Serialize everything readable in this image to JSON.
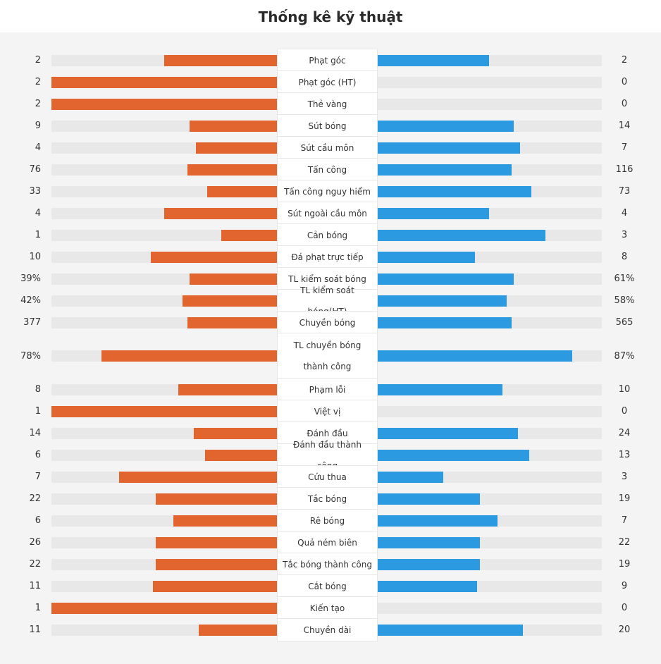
{
  "title": "Thống kê kỹ thuật",
  "colors": {
    "home": "#e2642e",
    "away": "#2b9ae0",
    "track": "#e8e8e8"
  },
  "chart_data": {
    "type": "bar",
    "orientation": "horizontal-diverging",
    "series": [
      {
        "name": "home",
        "color": "#e2642e"
      },
      {
        "name": "away",
        "color": "#2b9ae0"
      }
    ],
    "stats": [
      {
        "label": "Phạt góc",
        "home": "2",
        "away": "2",
        "home_share": 0.5,
        "away_share": 0.5
      },
      {
        "label": "Phạt góc (HT)",
        "home": "2",
        "away": "0",
        "home_share": 1.0,
        "away_share": 0.0
      },
      {
        "label": "Thẻ vàng",
        "home": "2",
        "away": "0",
        "home_share": 1.0,
        "away_share": 0.0
      },
      {
        "label": "Sút bóng",
        "home": "9",
        "away": "14",
        "home_share": 0.39,
        "away_share": 0.61
      },
      {
        "label": "Sút cầu môn",
        "home": "4",
        "away": "7",
        "home_share": 0.36,
        "away_share": 0.64
      },
      {
        "label": "Tấn công",
        "home": "76",
        "away": "116",
        "home_share": 0.4,
        "away_share": 0.6
      },
      {
        "label": "Tấn công nguy hiểm",
        "home": "33",
        "away": "73",
        "home_share": 0.31,
        "away_share": 0.69
      },
      {
        "label": "Sút ngoài cầu môn",
        "home": "4",
        "away": "4",
        "home_share": 0.5,
        "away_share": 0.5
      },
      {
        "label": "Cản bóng",
        "home": "1",
        "away": "3",
        "home_share": 0.25,
        "away_share": 0.75
      },
      {
        "label": "Đá phạt trực tiếp",
        "home": "10",
        "away": "8",
        "home_share": 0.56,
        "away_share": 0.44
      },
      {
        "label": "TL kiểm soát bóng",
        "home": "39%",
        "away": "61%",
        "home_share": 0.39,
        "away_share": 0.61
      },
      {
        "label": "TL kiểm soát bóng(HT)",
        "home": "42%",
        "away": "58%",
        "home_share": 0.42,
        "away_share": 0.58
      },
      {
        "label": "Chuyền bóng",
        "home": "377",
        "away": "565",
        "home_share": 0.4,
        "away_share": 0.6
      },
      {
        "label": "TL chuyền bóng thành công",
        "home": "78%",
        "away": "87%",
        "home_share": 0.78,
        "away_share": 0.87
      },
      {
        "label": "Phạm lỗi",
        "home": "8",
        "away": "10",
        "home_share": 0.44,
        "away_share": 0.56
      },
      {
        "label": "Việt vị",
        "home": "1",
        "away": "0",
        "home_share": 1.0,
        "away_share": 0.0
      },
      {
        "label": "Đánh đầu",
        "home": "14",
        "away": "24",
        "home_share": 0.37,
        "away_share": 0.63
      },
      {
        "label": "Đánh đầu thành công",
        "home": "6",
        "away": "13",
        "home_share": 0.32,
        "away_share": 0.68
      },
      {
        "label": "Cứu thua",
        "home": "7",
        "away": "3",
        "home_share": 0.7,
        "away_share": 0.3
      },
      {
        "label": "Tắc bóng",
        "home": "22",
        "away": "19",
        "home_share": 0.54,
        "away_share": 0.46
      },
      {
        "label": "Rê bóng",
        "home": "6",
        "away": "7",
        "home_share": 0.46,
        "away_share": 0.54
      },
      {
        "label": "Quả ném biên",
        "home": "26",
        "away": "22",
        "home_share": 0.54,
        "away_share": 0.46
      },
      {
        "label": "Tắc bóng thành công",
        "home": "22",
        "away": "19",
        "home_share": 0.54,
        "away_share": 0.46
      },
      {
        "label": "Cắt bóng",
        "home": "11",
        "away": "9",
        "home_share": 0.55,
        "away_share": 0.45
      },
      {
        "label": "Kiến tạo",
        "home": "1",
        "away": "0",
        "home_share": 1.0,
        "away_share": 0.0
      },
      {
        "label": "Chuyền dài",
        "home": "11",
        "away": "20",
        "home_share": 0.35,
        "away_share": 0.65
      }
    ]
  }
}
